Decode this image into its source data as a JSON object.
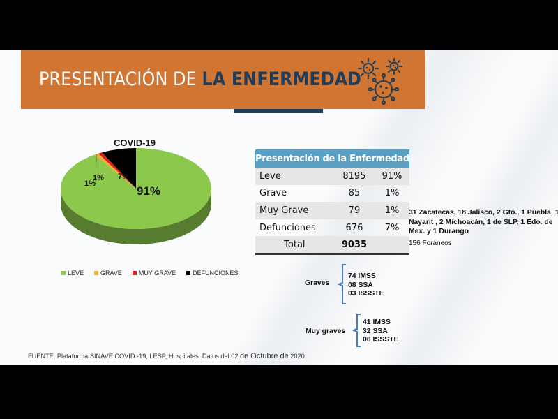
{
  "banner": {
    "title_light": "PRESENTACIÓN DE ",
    "title_bold": "LA ENFERMEDAD",
    "icon": "virus-icon",
    "colors": {
      "background": "#d07632",
      "bold_text": "#1f3d5c"
    }
  },
  "chart_data": {
    "type": "pie",
    "title": "COVID-19",
    "categories": [
      "LEVE",
      "GRAVE",
      "MUY GRAVE",
      "DEFUNCIONES"
    ],
    "values": [
      8195,
      85,
      79,
      676
    ],
    "percent_labels": [
      "91%",
      "1%",
      "1%",
      "7%"
    ],
    "colors": [
      "#8cc84b",
      "#f2b134",
      "#e02020",
      "#000000"
    ],
    "legend_position": "bottom",
    "style": "3d"
  },
  "table": {
    "header": "Presentación de la Enfermedad",
    "rows": [
      {
        "label": "Leve",
        "count": "8195",
        "pct": "91%"
      },
      {
        "label": "Grave",
        "count": "85",
        "pct": "1%"
      },
      {
        "label": "Muy Grave",
        "count": "79",
        "pct": "1%"
      },
      {
        "label": "Defunciones",
        "count": "676",
        "pct": "7%"
      }
    ],
    "total_label": "Total",
    "total_value": "9035",
    "header_color": "#5aa0c4"
  },
  "notes": {
    "origin": "31 Zacatecas, 18 Jalisco, 2 Gto., 1 Puebla, 1 Nayarit , 2 Michoacán, 1 de SLP, 1 Edo. de Mex. y 1 Durango",
    "foraneos": "156 Foráneos"
  },
  "groups": [
    {
      "label": "Graves",
      "items": [
        "74 IMSS",
        "08 SSA",
        "03 ISSSTE"
      ]
    },
    {
      "label": "Muy graves",
      "items": [
        "41 IMSS",
        "32 SSA",
        "06 ISSSTE"
      ]
    }
  ],
  "footer": {
    "source": "FUENTE. Plataforma SINAVE COVID -19, LESP, Hospitales. Datos del 02 ",
    "date_part": "de Octubre de",
    "year": " 2020"
  }
}
